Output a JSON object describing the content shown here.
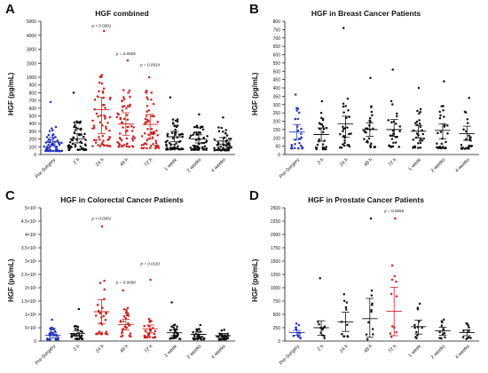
{
  "chart_data": [
    {
      "type": "scatter",
      "letter": "A",
      "title": "HGF combined",
      "ylabel": "HGF (pg/mL)",
      "categories": [
        "Pre-Surgery",
        "2 h",
        "24 h",
        "48 h",
        "72 h",
        "1 week",
        "2 weeks",
        "4 weeks"
      ],
      "ytick_labels": [
        "0",
        "100",
        "200",
        "300",
        "400",
        "500",
        "600",
        "700",
        "800",
        "900",
        "1000",
        "2000",
        "3000",
        "4000",
        "5000"
      ],
      "ylim": [
        0,
        5000
      ],
      "means": [
        160,
        205,
        580,
        395,
        390,
        230,
        200,
        175
      ],
      "sd_low": [
        110,
        150,
        270,
        250,
        200,
        165,
        150,
        135
      ],
      "sd_high": [
        225,
        270,
        740,
        540,
        520,
        300,
        255,
        220
      ],
      "max_points": [
        680,
        800,
        4300,
        2200,
        1000,
        740,
        520,
        480
      ],
      "n_points": [
        60,
        60,
        60,
        60,
        60,
        60,
        60,
        60
      ],
      "highlight_colors": [
        "#2233bb",
        "#111111",
        "#cc2222",
        "#cc2222",
        "#cc2222",
        "#111111",
        "#111111",
        "#111111"
      ],
      "annotations": [
        {
          "category": "24 h",
          "text": "p < 0.0001",
          "value": 4600
        },
        {
          "category": "48 h",
          "text": "p = 0.0005",
          "value": 2600
        },
        {
          "category": "72 h",
          "text": "p = 0.0014",
          "value": 1800
        }
      ]
    },
    {
      "type": "scatter",
      "letter": "B",
      "title": "HGF in Breast Cancer Patients",
      "ylabel": "HGF (pg/mL)",
      "categories": [
        "Pre-Surgery",
        "2 h",
        "24 h",
        "48 h",
        "72 h",
        "1 week",
        "2 weeks",
        "4 weeks"
      ],
      "ytick_labels": [
        "0",
        "50",
        "100",
        "150",
        "200",
        "250",
        "300",
        "350",
        "400",
        "450",
        "500",
        "550",
        "600",
        "650",
        "700",
        "750",
        "800"
      ],
      "ylim": [
        0,
        800
      ],
      "means": [
        135,
        120,
        185,
        150,
        150,
        140,
        145,
        125
      ],
      "sd_low": [
        90,
        80,
        105,
        110,
        110,
        100,
        95,
        85
      ],
      "sd_high": [
        180,
        160,
        230,
        190,
        210,
        175,
        185,
        170
      ],
      "max_points": [
        360,
        320,
        760,
        460,
        510,
        400,
        440,
        340
      ],
      "n_points": [
        30,
        30,
        30,
        30,
        30,
        30,
        30,
        30
      ],
      "highlight_colors": [
        "#2233bb",
        "#111111",
        "#111111",
        "#111111",
        "#111111",
        "#111111",
        "#111111",
        "#111111"
      ],
      "annotations": []
    },
    {
      "type": "scatter",
      "letter": "C",
      "title": "HGF in Colorectal Cancer Patients",
      "ylabel": "HGF (pg/mL)",
      "categories": [
        "Pre-Surgery",
        "2 h",
        "24 h",
        "48 h",
        "72 h",
        "1 week",
        "2 weeks",
        "4 weeks"
      ],
      "ytick_labels": [
        "0",
        "5×10²",
        "1×10³",
        "1.5×10³",
        "2×10³",
        "2.5×10³",
        "3×10³",
        "3.5×10³",
        "4×10³",
        "4.5×10³",
        "5×10³"
      ],
      "ylim": [
        0,
        5000
      ],
      "means": [
        220,
        280,
        1100,
        620,
        460,
        310,
        250,
        200
      ],
      "sd_low": [
        120,
        180,
        650,
        420,
        320,
        200,
        160,
        130
      ],
      "sd_high": [
        320,
        380,
        1550,
        820,
        600,
        420,
        340,
        280
      ],
      "max_points": [
        800,
        1200,
        4300,
        1900,
        2300,
        1450,
        600,
        420
      ],
      "n_points": [
        30,
        30,
        30,
        30,
        30,
        30,
        30,
        30
      ],
      "highlight_colors": [
        "#2233bb",
        "#111111",
        "#cc2222",
        "#cc2222",
        "#cc2222",
        "#111111",
        "#111111",
        "#111111"
      ],
      "annotations": [
        {
          "category": "24 h",
          "text": "p < 0.0001",
          "value": 4550
        },
        {
          "category": "48 h",
          "text": "p = 0.0008",
          "value": 2150
        },
        {
          "category": "72 h",
          "text": "p = 0.0110",
          "value": 2850
        }
      ]
    },
    {
      "type": "scatter",
      "letter": "D",
      "title": "HGF in Prostate Cancer Patients",
      "ylabel": "HGF (pg/mL)",
      "categories": [
        "Pre-Surgery",
        "2 h",
        "24 h",
        "48 h",
        "72 h",
        "1 week",
        "2 weeks",
        "4 weeks"
      ],
      "ytick_labels": [
        "0",
        "250",
        "500",
        "750",
        "1000",
        "1250",
        "1500",
        "1750",
        "2000",
        "2250",
        "2500"
      ],
      "ylim": [
        0,
        2500
      ],
      "means": [
        160,
        250,
        360,
        420,
        560,
        270,
        190,
        160
      ],
      "sd_low": [
        110,
        110,
        180,
        70,
        100,
        130,
        110,
        100
      ],
      "sd_high": [
        200,
        380,
        540,
        800,
        1010,
        390,
        260,
        210
      ],
      "max_points": [
        330,
        1180,
        880,
        2300,
        2300,
        700,
        400,
        330
      ],
      "n_points": [
        12,
        12,
        12,
        12,
        12,
        12,
        12,
        12
      ],
      "highlight_colors": [
        "#2233bb",
        "#111111",
        "#111111",
        "#111111",
        "#cc2222",
        "#111111",
        "#111111",
        "#111111"
      ],
      "annotations": [
        {
          "category": "72 h",
          "text": "p = 0.0055",
          "value": 2420
        }
      ]
    }
  ]
}
